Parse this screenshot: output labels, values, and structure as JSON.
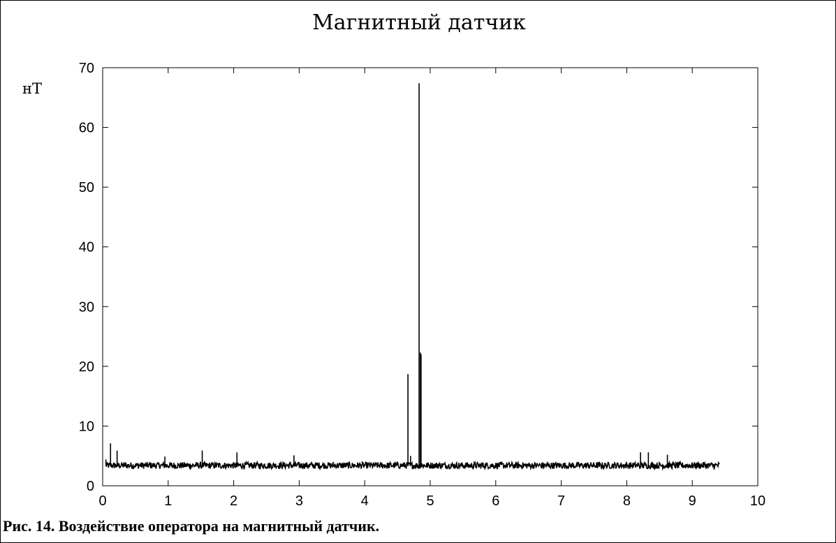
{
  "caption": "Рис. 14. Воздействие оператора на магнитный датчик.",
  "chart_data": {
    "type": "line",
    "title": "Магнитный датчик",
    "unit_label": "нТ",
    "xlabel": "",
    "ylabel": "",
    "xlim": [
      0,
      10
    ],
    "ylim": [
      0,
      70
    ],
    "x_ticks": [
      "0",
      "1",
      "2",
      "3",
      "4",
      "5",
      "6",
      "7",
      "8",
      "9",
      "10"
    ],
    "y_ticks": [
      "0",
      "10",
      "20",
      "30",
      "40",
      "50",
      "60",
      "70"
    ],
    "grid": false,
    "line_color": "#000000",
    "x_start": 0.05,
    "x_end": 9.42,
    "baseline_mean": 3.4,
    "baseline_noise": 0.55,
    "spikes": [
      {
        "x": 0.05,
        "y": 4.4
      },
      {
        "x": 0.12,
        "y": 7.1
      },
      {
        "x": 0.22,
        "y": 5.9
      },
      {
        "x": 0.95,
        "y": 4.9
      },
      {
        "x": 1.52,
        "y": 5.9
      },
      {
        "x": 2.05,
        "y": 5.6
      },
      {
        "x": 2.92,
        "y": 5.1
      },
      {
        "x": 4.66,
        "y": 18.7
      },
      {
        "x": 4.7,
        "y": 5.0
      },
      {
        "x": 4.83,
        "y": 67.4
      },
      {
        "x": 4.85,
        "y": 22.3
      },
      {
        "x": 4.86,
        "y": 22.0
      },
      {
        "x": 8.21,
        "y": 5.6
      },
      {
        "x": 8.33,
        "y": 5.6
      },
      {
        "x": 8.62,
        "y": 5.2
      }
    ]
  }
}
